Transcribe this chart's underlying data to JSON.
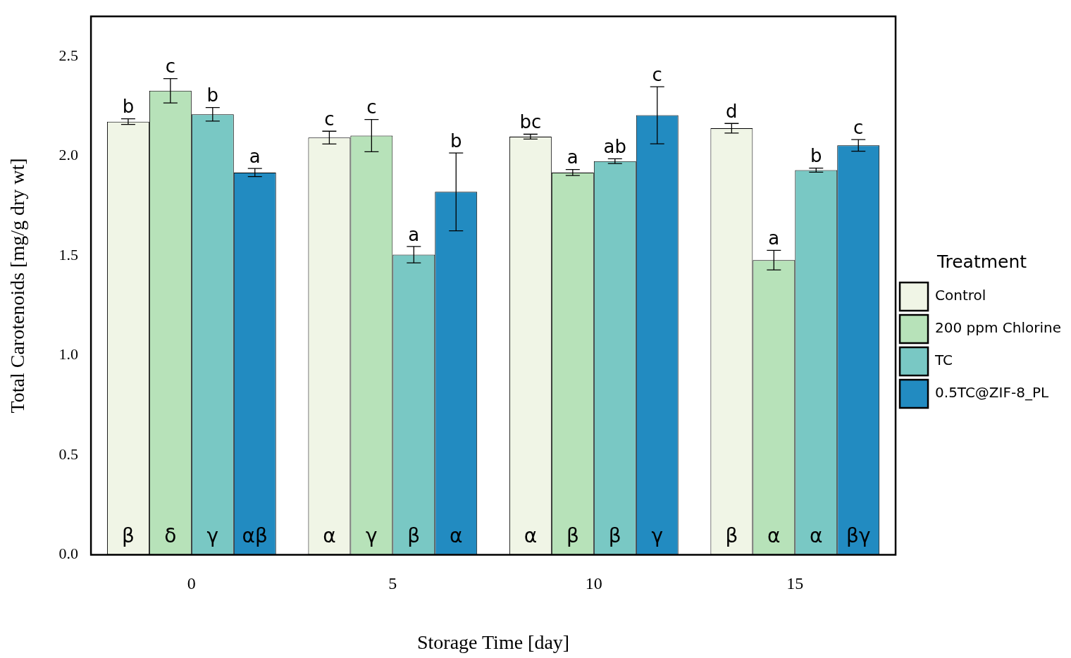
{
  "chart_data": {
    "type": "bar",
    "xlabel": "Storage Time [day]",
    "ylabel": "Total Carotenoids [mg/g dry wt]",
    "legend_title": "Treatment",
    "legend": "right",
    "grid": false,
    "categories": [
      "0",
      "5",
      "10",
      "15"
    ],
    "ylim": [
      0,
      2.7
    ],
    "yticks": [
      {
        "value": 0,
        "label": "0.0"
      },
      0.5,
      {
        "value": 1,
        "label": "1.0"
      },
      1.5,
      {
        "value": 2,
        "label": "2.0"
      },
      2.5
    ],
    "series": [
      {
        "name": "Control",
        "color": "#f0f5e6",
        "values": [
          2.172,
          2.092,
          2.097,
          2.139
        ],
        "errors": [
          0.014,
          0.032,
          0.012,
          0.024
        ],
        "value_labels": [
          "b",
          "c",
          "bc",
          "d"
        ]
      },
      {
        "name": "200 ppm Chlorine",
        "color": "#b7e2b9",
        "values": [
          2.327,
          2.102,
          1.917,
          1.478
        ],
        "errors": [
          0.061,
          0.081,
          0.015,
          0.049
        ],
        "value_labels": [
          "c",
          "c",
          "a",
          "a"
        ]
      },
      {
        "name": "TC",
        "color": "#79c8c4",
        "values": [
          2.209,
          1.505,
          1.974,
          1.929
        ],
        "errors": [
          0.034,
          0.041,
          0.012,
          0.01
        ],
        "value_labels": [
          "b",
          "a",
          "ab",
          "b"
        ]
      },
      {
        "name": "0.5TC@ZIF-8_PL",
        "color": "#228bc1",
        "values": [
          1.917,
          1.82,
          2.204,
          2.053
        ],
        "errors": [
          0.02,
          0.195,
          0.143,
          0.029
        ],
        "value_labels": [
          "a",
          "b",
          "c",
          "c"
        ]
      }
    ],
    "annotations": [
      {
        "text": "β",
        "x": "0",
        "y": 0.08
      },
      {
        "text": "δ",
        "x": "0",
        "y": 0.08
      },
      {
        "text": "γ",
        "x": "0",
        "y": 0.08
      },
      {
        "text": "αβ",
        "x": "0",
        "y": 0.08
      },
      {
        "text": "α",
        "x": "5",
        "y": 0.08
      },
      {
        "text": "γ",
        "x": "5",
        "y": 0.08
      },
      {
        "text": "β",
        "x": "5",
        "y": 0.08
      },
      {
        "text": "α",
        "x": "5",
        "y": 0.08
      },
      {
        "text": "α",
        "x": "10",
        "y": 0.08
      },
      {
        "text": "β",
        "x": "10",
        "y": 0.08
      },
      {
        "text": "β",
        "x": "10",
        "y": 0.08
      },
      {
        "text": "γ",
        "x": "10",
        "y": 0.08
      },
      {
        "text": "β",
        "x": "15",
        "y": 0.08
      },
      {
        "text": "α",
        "x": "15",
        "y": 0.08
      },
      {
        "text": "α",
        "x": "15",
        "y": 0.08
      },
      {
        "text": "βγ",
        "x": "15",
        "y": 0.08
      }
    ]
  }
}
